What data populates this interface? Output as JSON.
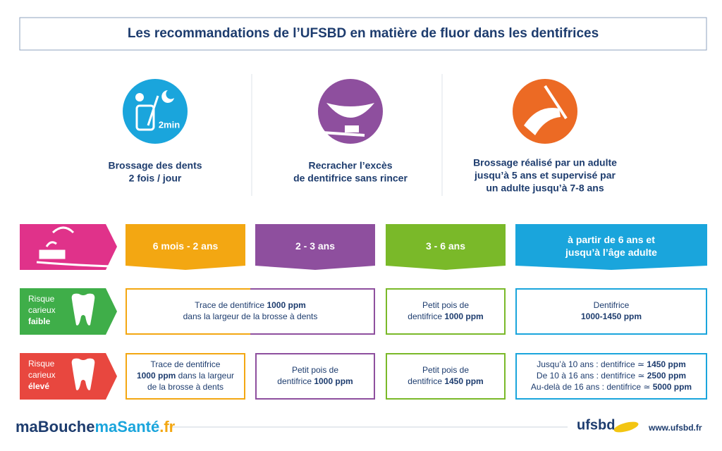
{
  "title": "Les recommandations de l’UFSBD en matière de fluor dans les dentifrices",
  "tips": [
    {
      "icon_label": "2min",
      "color": "#1aa5dc",
      "lines": [
        "Brossage des dents",
        "2 fois / jour"
      ]
    },
    {
      "color": "#8e4f9e",
      "lines": [
        "Recracher l’excès",
        "de dentifrice sans rincer"
      ]
    },
    {
      "color": "#ec6a24",
      "lines": [
        "Brossage réalisé par un adulte",
        "jusqu’à 5 ans et supervisé par",
        "un adulte jusqu’à 7-8 ans"
      ]
    }
  ],
  "ages": [
    {
      "color": "#f3a712",
      "lines": [
        "6 mois - 2 ans"
      ]
    },
    {
      "color": "#8e4f9e",
      "lines": [
        "2 - 3 ans"
      ]
    },
    {
      "color": "#7ab929",
      "lines": [
        "3 - 6 ans"
      ]
    },
    {
      "color": "#1aa5dc",
      "lines": [
        "à partir de 6 ans et",
        "jusqu’à l’âge adulte"
      ]
    }
  ],
  "risks": [
    {
      "label": [
        "Risque",
        "carieux"
      ],
      "level": "faible",
      "color": "#3fae49",
      "cells": [
        {
          "lines": [
            [
              {
                "text": "Trace de dentifrice "
              },
              {
                "text": "1000 ppm",
                "bold": true
              }
            ],
            [
              {
                "text": "dans la largeur de la brosse à dents"
              }
            ]
          ]
        },
        {
          "lines": [
            [
              {
                "text": "Petit pois de"
              }
            ],
            [
              {
                "text": "dentifrice "
              },
              {
                "text": "1000 ppm",
                "bold": true
              }
            ]
          ]
        },
        {
          "lines": [
            [
              {
                "text": "Dentifrice"
              }
            ],
            [
              {
                "text": "1000-1450 ppm",
                "bold": true
              }
            ]
          ]
        }
      ]
    },
    {
      "label": [
        "Risque",
        "carieux"
      ],
      "level": "élevé",
      "color": "#e8473f",
      "cells": [
        {
          "lines": [
            [
              {
                "text": "Trace de dentifrice"
              }
            ],
            [
              {
                "text": "1000 ppm",
                "bold": true
              },
              {
                "text": " dans la largeur"
              }
            ],
            [
              {
                "text": "de la brosse à dents"
              }
            ]
          ]
        },
        {
          "lines": [
            [
              {
                "text": "Petit pois de"
              }
            ],
            [
              {
                "text": "dentifrice "
              },
              {
                "text": "1000 ppm",
                "bold": true
              }
            ]
          ]
        },
        {
          "lines": [
            [
              {
                "text": "Petit pois de"
              }
            ],
            [
              {
                "text": "dentifrice "
              },
              {
                "text": "1450 ppm",
                "bold": true
              }
            ]
          ]
        },
        {
          "lines": [
            [
              {
                "text": "Jusqu’à 10 ans : dentifrice ≃ "
              },
              {
                "text": "1450 ppm",
                "bold": true
              }
            ],
            [
              {
                "text": "De 10 à 16 ans : dentifrice ≃ "
              },
              {
                "text": "2500 ppm",
                "bold": true
              }
            ],
            [
              {
                "text": "Au-delà de 16 ans : dentifrice ≃ "
              },
              {
                "text": "5000 ppm",
                "bold": true
              }
            ]
          ]
        }
      ]
    }
  ],
  "footer": {
    "brand": [
      {
        "text": "maBouche",
        "color": "#1d3c6e"
      },
      {
        "text": "maSanté",
        "color": "#1aa5dc"
      },
      {
        "text": ".fr",
        "color": "#f3a712"
      }
    ],
    "logo": "ufsbd",
    "url": "www.ufsbd.fr"
  }
}
